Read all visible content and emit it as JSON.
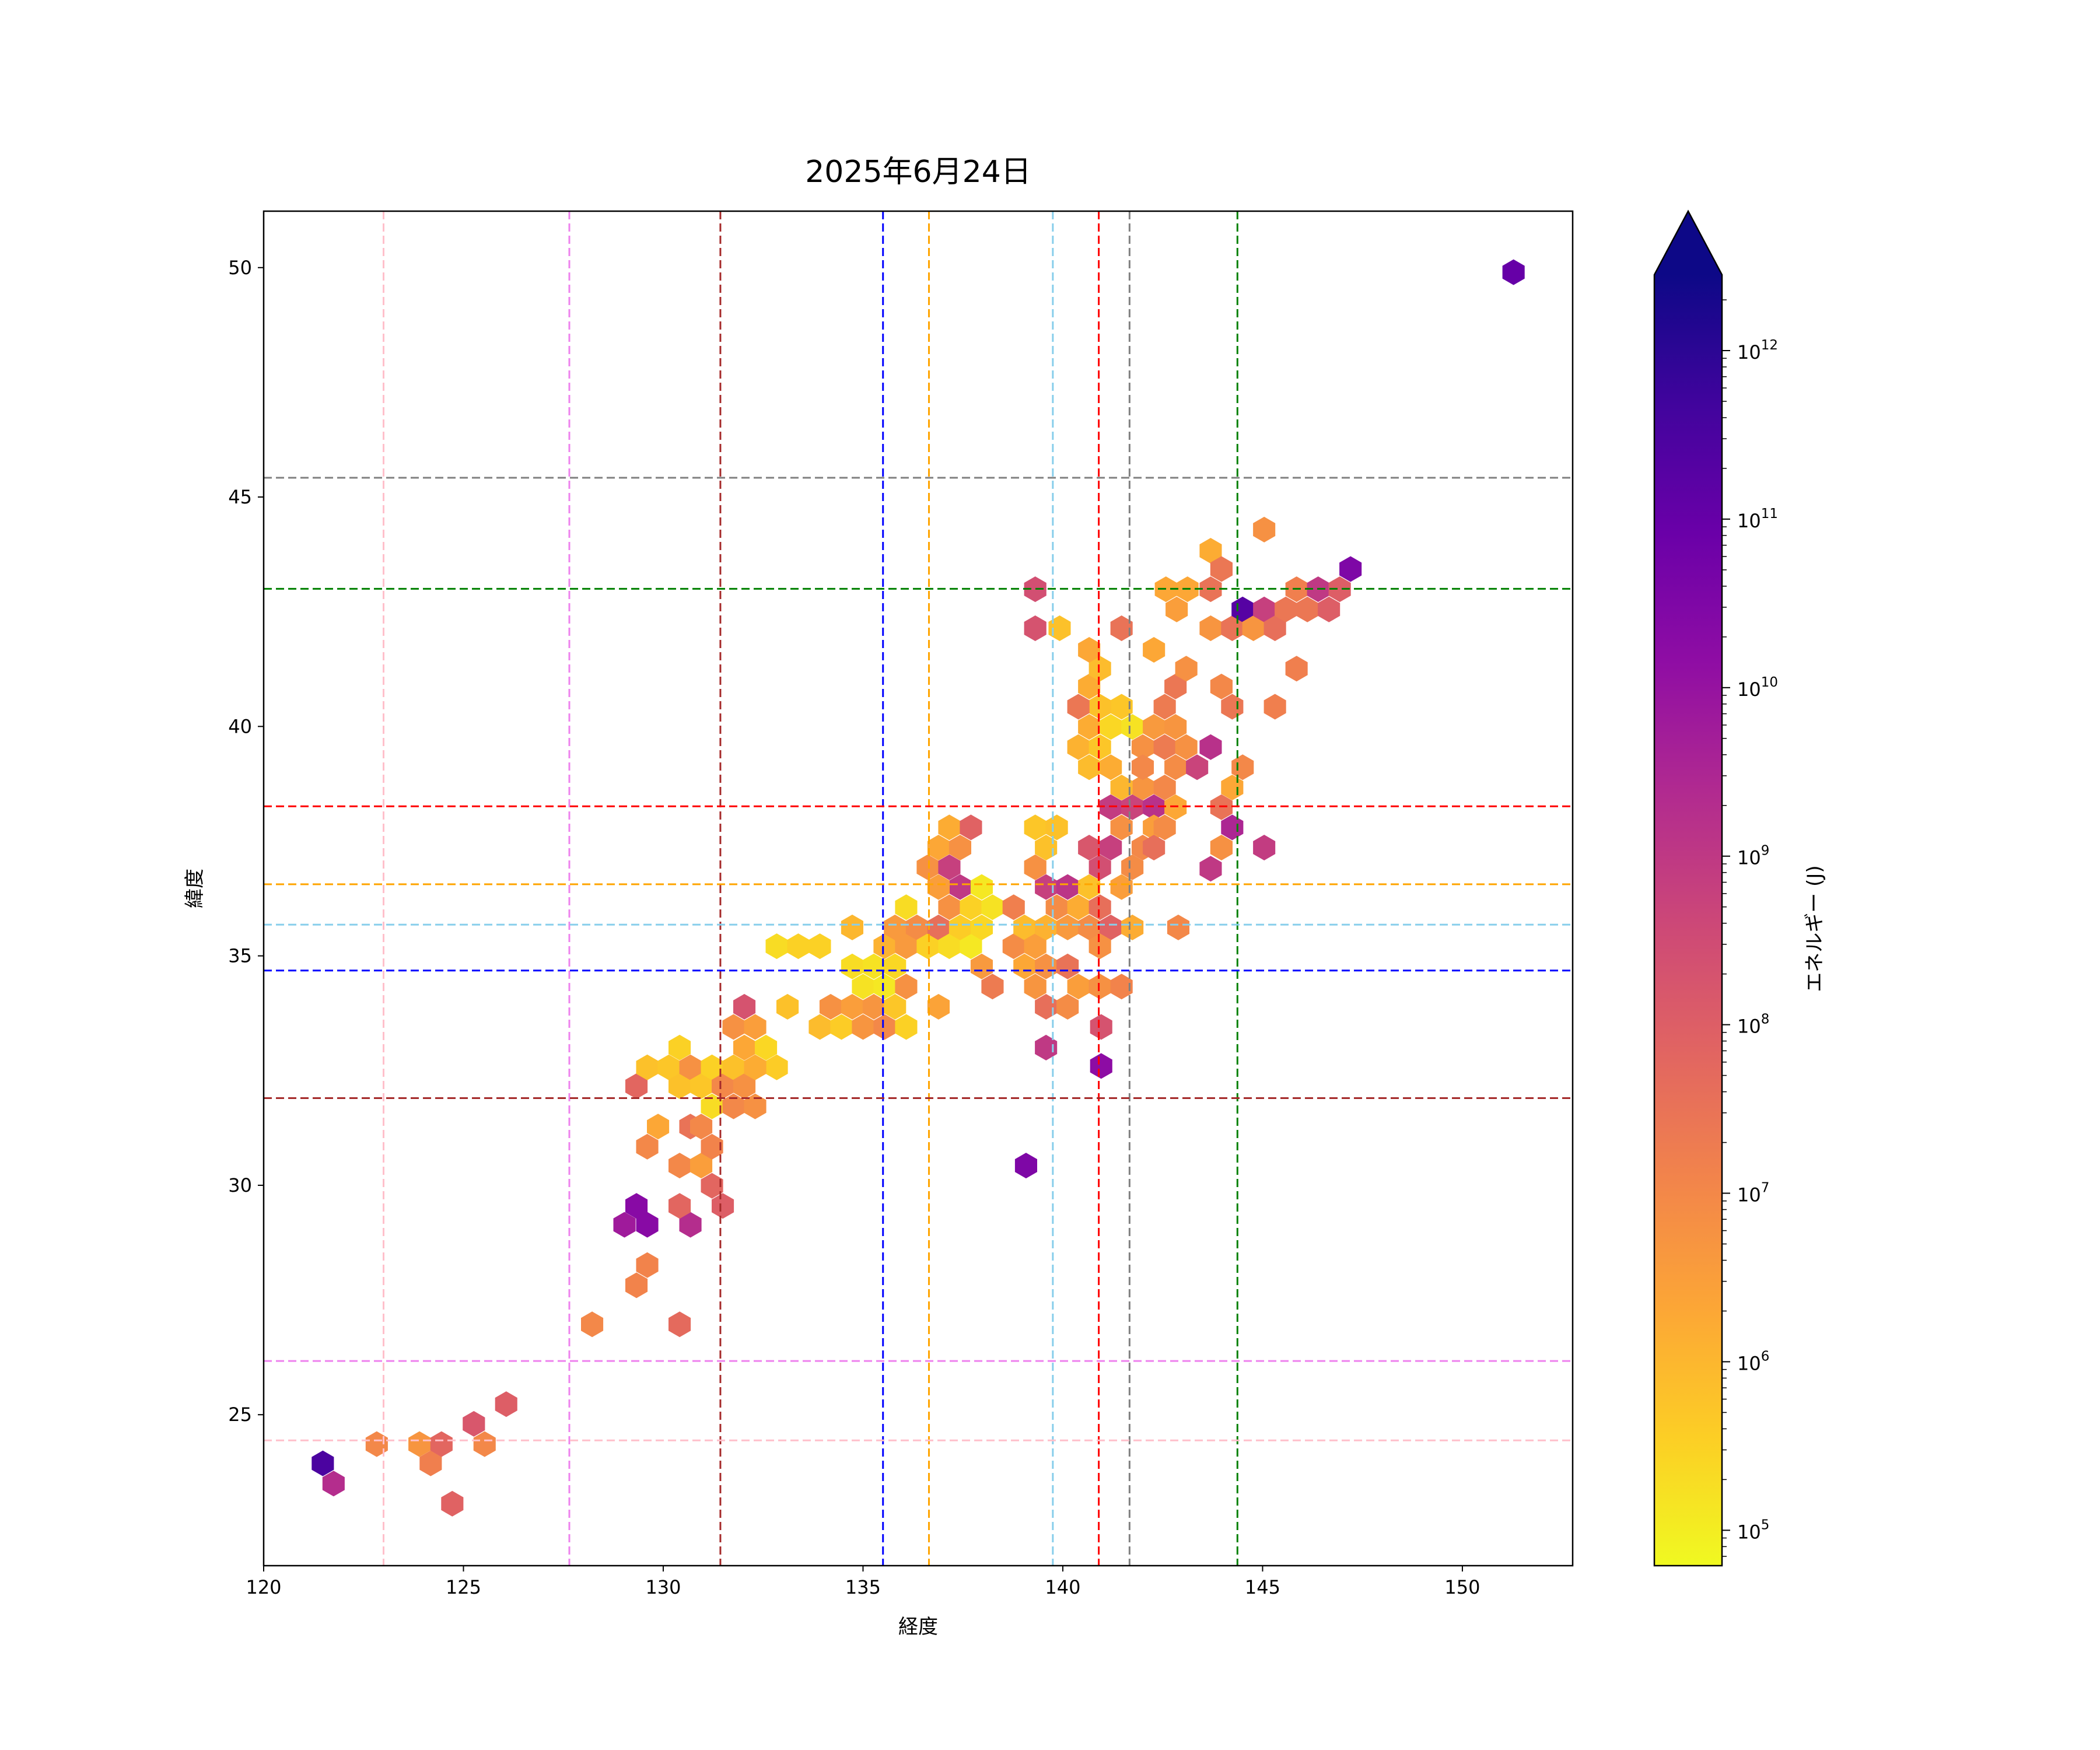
{
  "chart_data": {
    "type": "heatmap",
    "subtype": "hexbin",
    "title": "2025年6月24日",
    "xlabel": "経度",
    "ylabel": "緯度",
    "xlim": [
      120,
      152.76
    ],
    "ylim": [
      21.71,
      51.23
    ],
    "xticks": [
      120,
      125,
      130,
      135,
      140,
      145,
      150
    ],
    "yticks": [
      25,
      30,
      35,
      40,
      45,
      50
    ],
    "grid": false,
    "colorbar": {
      "label": "エネルギー (J)",
      "scale": "log",
      "colormap": "plasma_r",
      "log10_range": [
        4.79,
        12.45
      ],
      "extend": "max",
      "tick_base": "10",
      "tick_exponents": [
        "5",
        "6",
        "7",
        "8",
        "9",
        "10",
        "11",
        "12"
      ]
    },
    "reference_lines": {
      "vertical": [
        {
          "x": 123.0,
          "color": "#ffc0cb"
        },
        {
          "x": 127.65,
          "color": "#ee82ee"
        },
        {
          "x": 131.43,
          "color": "#a52a2a"
        },
        {
          "x": 135.5,
          "color": "#0000ff"
        },
        {
          "x": 136.65,
          "color": "#ffa500"
        },
        {
          "x": 139.75,
          "color": "#87ceeb"
        },
        {
          "x": 140.9,
          "color": "#ff0000"
        },
        {
          "x": 141.67,
          "color": "#808080"
        },
        {
          "x": 144.37,
          "color": "#008000"
        }
      ],
      "horizontal": [
        {
          "y": 45.42,
          "color": "#808080"
        },
        {
          "y": 43.0,
          "color": "#008000"
        },
        {
          "y": 38.26,
          "color": "#ff0000"
        },
        {
          "y": 36.56,
          "color": "#ffa500"
        },
        {
          "y": 35.68,
          "color": "#87ceeb"
        },
        {
          "y": 34.68,
          "color": "#0000ff"
        },
        {
          "y": 31.9,
          "color": "#a52a2a"
        },
        {
          "y": 26.17,
          "color": "#ee82ee"
        },
        {
          "y": 24.44,
          "color": "#ffc0cb"
        }
      ]
    },
    "hexbins_lon_lat_log10J": [
      [
        151.28,
        49.9,
        11
      ],
      [
        121.48,
        23.94,
        11.5
      ],
      [
        121.75,
        23.5,
        9.3
      ],
      [
        122.83,
        24.36,
        7
      ],
      [
        123.9,
        24.36,
        6.7
      ],
      [
        124.18,
        23.94,
        7.2
      ],
      [
        124.45,
        24.36,
        7.8
      ],
      [
        124.72,
        23.06,
        7.9
      ],
      [
        125.26,
        24.8,
        8.2
      ],
      [
        125.53,
        24.36,
        7
      ],
      [
        126.07,
        25.23,
        8
      ],
      [
        128.22,
        26.97,
        7
      ],
      [
        130.41,
        26.97,
        7.7
      ],
      [
        129.33,
        27.82,
        7.1
      ],
      [
        129.6,
        28.26,
        7.1
      ],
      [
        129.03,
        29.14,
        9.8
      ],
      [
        129.33,
        29.55,
        10.3
      ],
      [
        129.6,
        29.14,
        10.3
      ],
      [
        130.68,
        29.14,
        9.3
      ],
      [
        130.41,
        29.55,
        7.8
      ],
      [
        131.49,
        29.55,
        8
      ],
      [
        131.22,
        29.99,
        7.8
      ],
      [
        129.6,
        30.84,
        7
      ],
      [
        130.41,
        30.43,
        7
      ],
      [
        130.95,
        30.43,
        6.5
      ],
      [
        129.87,
        31.28,
        6.3
      ],
      [
        130.68,
        31.28,
        7.5
      ],
      [
        130.95,
        31.28,
        7
      ],
      [
        131.22,
        30.84,
        7.1
      ],
      [
        129.33,
        32.16,
        7.8
      ],
      [
        129.6,
        32.57,
        5.8
      ],
      [
        130.14,
        32.57,
        5.7
      ],
      [
        130.41,
        33.0,
        5.5
      ],
      [
        130.41,
        32.16,
        5.8
      ],
      [
        130.68,
        32.57,
        6.8
      ],
      [
        130.95,
        32.16,
        5.7
      ],
      [
        131.22,
        32.57,
        5.5
      ],
      [
        131.22,
        31.72,
        5.3
      ],
      [
        131.49,
        32.16,
        7
      ],
      [
        131.76,
        32.57,
        5.8
      ],
      [
        131.76,
        31.72,
        7
      ],
      [
        132.03,
        32.16,
        6.8
      ],
      [
        132.3,
        31.72,
        6.8
      ],
      [
        131.76,
        33.45,
        6.8
      ],
      [
        132.03,
        33.89,
        8.3
      ],
      [
        132.03,
        33.0,
        6.3
      ],
      [
        132.3,
        33.45,
        6.5
      ],
      [
        132.57,
        33.0,
        5.4
      ],
      [
        132.84,
        32.57,
        5.6
      ],
      [
        132.3,
        32.57,
        6.2
      ],
      [
        132.84,
        35.21,
        5.3
      ],
      [
        133.38,
        35.21,
        5.5
      ],
      [
        133.92,
        35.21,
        5.5
      ],
      [
        133.11,
        33.89,
        5.8
      ],
      [
        133.92,
        33.45,
        5.9
      ],
      [
        134.19,
        33.89,
        6.8
      ],
      [
        134.46,
        33.45,
        5.6
      ],
      [
        134.73,
        33.89,
        6.5
      ],
      [
        135.0,
        33.45,
        6.7
      ],
      [
        134.73,
        35.62,
        6.0
      ],
      [
        134.73,
        34.77,
        5.3
      ],
      [
        135.0,
        34.33,
        5.2
      ],
      [
        135.27,
        33.89,
        6.7
      ],
      [
        135.54,
        33.45,
        7
      ],
      [
        135.54,
        35.21,
        6.1
      ],
      [
        135.27,
        34.77,
        5.2
      ],
      [
        135.54,
        34.33,
        5.1
      ],
      [
        135.8,
        34.77,
        5.4
      ],
      [
        135.8,
        35.62,
        6.6
      ],
      [
        135.8,
        33.89,
        5.7
      ],
      [
        136.08,
        34.33,
        6.8
      ],
      [
        136.08,
        33.45,
        5.5
      ],
      [
        136.08,
        36.06,
        5.3
      ],
      [
        136.08,
        35.21,
        6.6
      ],
      [
        136.35,
        35.62,
        6.9
      ],
      [
        136.62,
        35.21,
        5.5
      ],
      [
        136.62,
        36.93,
        6.8
      ],
      [
        136.89,
        35.62,
        7.6
      ],
      [
        136.89,
        33.89,
        6.4
      ],
      [
        136.89,
        37.36,
        6.3
      ],
      [
        137.16,
        37.8,
        6.2
      ],
      [
        137.16,
        36.93,
        8.8
      ],
      [
        137.43,
        37.36,
        6.8
      ],
      [
        137.43,
        36.5,
        9
      ],
      [
        137.7,
        37.8,
        7.9
      ],
      [
        137.16,
        36.06,
        6.8
      ],
      [
        136.89,
        36.5,
        6.5
      ],
      [
        137.16,
        35.21,
        5.3
      ],
      [
        137.7,
        35.21,
        5.1
      ],
      [
        137.43,
        35.62,
        5.6
      ],
      [
        137.7,
        36.06,
        5.5
      ],
      [
        137.97,
        36.5,
        5.1
      ],
      [
        137.97,
        35.62,
        5.4
      ],
      [
        138.24,
        36.06,
        5.2
      ],
      [
        137.97,
        34.77,
        6.6
      ],
      [
        138.24,
        34.33,
        7.3
      ],
      [
        138.77,
        36.06,
        7.2
      ],
      [
        138.77,
        35.21,
        6.9
      ],
      [
        139.04,
        35.62,
        5.9
      ],
      [
        139.04,
        34.77,
        6.3
      ],
      [
        139.31,
        37.8,
        5.7
      ],
      [
        139.85,
        37.8,
        5.8
      ],
      [
        139.58,
        37.36,
        5.8
      ],
      [
        139.31,
        36.93,
        6.8
      ],
      [
        139.58,
        36.5,
        8.8
      ],
      [
        140.12,
        36.5,
        9.1
      ],
      [
        139.31,
        35.21,
        6.5
      ],
      [
        139.58,
        35.62,
        6.1
      ],
      [
        139.31,
        34.33,
        6.7
      ],
      [
        139.58,
        33.89,
        7.6
      ],
      [
        139.58,
        34.77,
        6.8
      ],
      [
        139.85,
        36.06,
        6.9
      ],
      [
        140.12,
        35.62,
        6.6
      ],
      [
        140.12,
        34.77,
        7.5
      ],
      [
        140.12,
        33.89,
        6.9
      ],
      [
        140.39,
        36.06,
        6.2
      ],
      [
        140.39,
        34.33,
        6.5
      ],
      [
        139.58,
        33.0,
        9.0
      ],
      [
        139.08,
        30.43,
        10.5
      ],
      [
        140.96,
        33.45,
        8.3
      ],
      [
        140.96,
        32.6,
        10.2
      ],
      [
        140.66,
        35.62,
        6.9
      ],
      [
        140.66,
        36.5,
        5.8
      ],
      [
        140.66,
        37.36,
        8.2
      ],
      [
        140.93,
        36.93,
        8.4
      ],
      [
        141.2,
        37.36,
        8.8
      ],
      [
        140.93,
        36.06,
        7.6
      ],
      [
        141.2,
        35.62,
        7.9
      ],
      [
        140.93,
        35.21,
        6.8
      ],
      [
        140.93,
        34.33,
        6.8
      ],
      [
        141.47,
        34.33,
        7.1
      ],
      [
        141.47,
        36.5,
        6.5
      ],
      [
        141.74,
        35.62,
        6.2
      ],
      [
        141.74,
        36.93,
        6.9
      ],
      [
        142.0,
        37.36,
        7
      ],
      [
        141.2,
        38.24,
        8.9
      ],
      [
        141.47,
        37.8,
        6.8
      ],
      [
        141.74,
        38.24,
        8.7
      ],
      [
        142.28,
        38.24,
        9.2
      ],
      [
        142.28,
        37.8,
        6.5
      ],
      [
        142.55,
        37.8,
        6.9
      ],
      [
        142.28,
        37.36,
        7.6
      ],
      [
        142.0,
        38.67,
        6.7
      ],
      [
        141.47,
        38.67,
        6.0
      ],
      [
        141.2,
        39.11,
        6.2
      ],
      [
        140.66,
        39.11,
        5.9
      ],
      [
        140.39,
        39.55,
        6.1
      ],
      [
        140.66,
        39.99,
        6.2
      ],
      [
        140.93,
        39.55,
        5.7
      ],
      [
        141.2,
        39.99,
        5.4
      ],
      [
        141.74,
        39.99,
        5.2
      ],
      [
        141.47,
        40.43,
        5.7
      ],
      [
        140.93,
        40.43,
        5.8
      ],
      [
        140.39,
        40.43,
        7.4
      ],
      [
        140.66,
        40.87,
        6.2
      ],
      [
        140.93,
        41.26,
        5.9
      ],
      [
        140.66,
        41.67,
        6.3
      ],
      [
        141.47,
        42.14,
        7.5
      ],
      [
        139.92,
        42.14,
        5.8
      ],
      [
        139.31,
        42.14,
        8.3
      ],
      [
        139.31,
        42.99,
        8.4
      ],
      [
        142.0,
        39.55,
        6.8
      ],
      [
        142.0,
        39.11,
        7
      ],
      [
        142.28,
        39.99,
        6.6
      ],
      [
        142.55,
        39.55,
        7.3
      ],
      [
        142.55,
        40.43,
        7.3
      ],
      [
        142.82,
        39.99,
        6.7
      ],
      [
        142.82,
        39.11,
        6.9
      ],
      [
        143.09,
        39.55,
        6.8
      ],
      [
        143.36,
        39.11,
        8.7
      ],
      [
        143.7,
        39.55,
        9.2
      ],
      [
        142.82,
        38.24,
        6.3
      ],
      [
        142.55,
        38.67,
        7
      ],
      [
        142.82,
        40.87,
        7.4
      ],
      [
        143.09,
        41.26,
        6.8
      ],
      [
        142.28,
        41.67,
        6.3
      ],
      [
        143.7,
        36.9,
        9
      ],
      [
        142.89,
        35.62,
        7
      ],
      [
        143.97,
        37.36,
        6.8
      ],
      [
        143.97,
        38.24,
        7.5
      ],
      [
        144.24,
        37.8,
        9.5
      ],
      [
        144.24,
        38.67,
        6.3
      ],
      [
        144.5,
        39.11,
        7
      ],
      [
        145.04,
        37.36,
        8.9
      ],
      [
        143.97,
        40.87,
        7
      ],
      [
        144.24,
        40.43,
        7.4
      ],
      [
        145.31,
        40.43,
        7.2
      ],
      [
        145.85,
        41.26,
        7.2
      ],
      [
        142.58,
        42.99,
        6.3
      ],
      [
        143.12,
        42.99,
        6.3
      ],
      [
        142.85,
        42.55,
        6.5
      ],
      [
        143.7,
        42.99,
        7.5
      ],
      [
        143.7,
        43.83,
        6.2
      ],
      [
        143.97,
        43.43,
        7.4
      ],
      [
        143.7,
        42.14,
        6.7
      ],
      [
        144.24,
        42.14,
        7.5
      ],
      [
        144.5,
        42.55,
        11.3
      ],
      [
        144.77,
        42.14,
        6.7
      ],
      [
        145.04,
        42.55,
        8.8
      ],
      [
        145.31,
        42.14,
        7.6
      ],
      [
        145.58,
        42.55,
        7.4
      ],
      [
        145.85,
        42.99,
        7.2
      ],
      [
        146.12,
        42.55,
        7.4
      ],
      [
        146.39,
        42.99,
        9
      ],
      [
        146.66,
        42.55,
        8
      ],
      [
        146.93,
        42.99,
        8
      ],
      [
        147.2,
        43.43,
        10.5
      ],
      [
        145.04,
        44.29,
        6.8
      ]
    ]
  }
}
